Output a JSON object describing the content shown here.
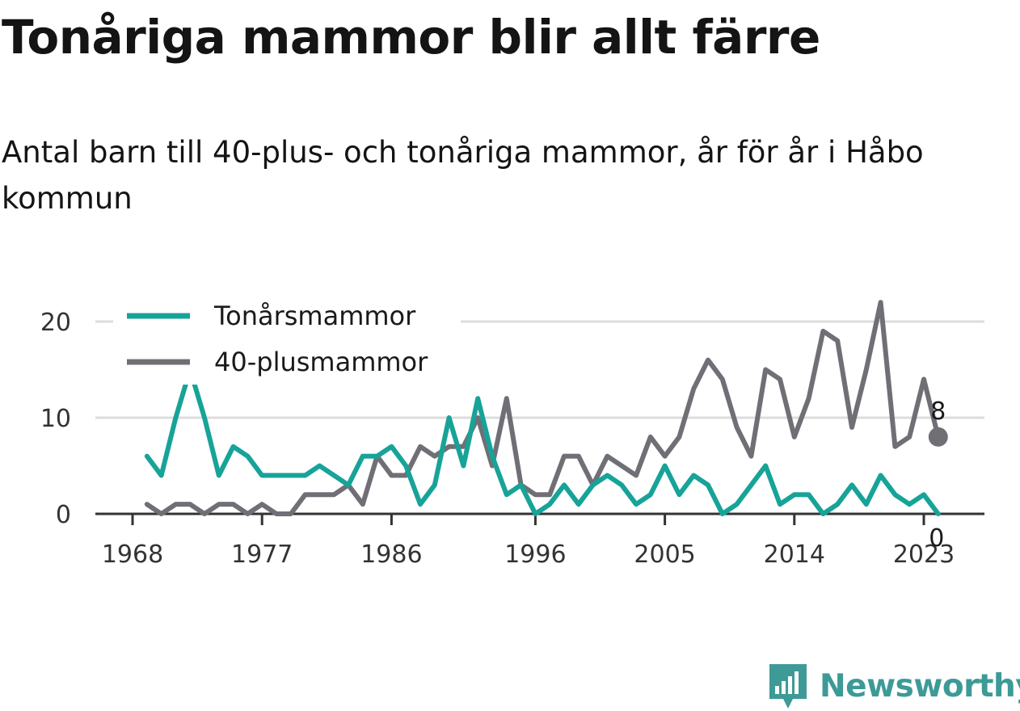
{
  "title": "Tonåriga mammor blir allt färre",
  "subtitle": "Antal barn till 40-plus- och tonåriga mammor, år för år i Håbo kommun",
  "brand": "Newsworthy",
  "colors": {
    "teen": "#17a398",
    "forty": "#706f76",
    "grid": "#dcdcdc",
    "axis": "#333333"
  },
  "chart_data": {
    "type": "line",
    "x": [
      1969,
      1970,
      1971,
      1972,
      1973,
      1974,
      1975,
      1976,
      1977,
      1978,
      1979,
      1980,
      1981,
      1982,
      1983,
      1984,
      1985,
      1986,
      1987,
      1988,
      1989,
      1990,
      1991,
      1992,
      1993,
      1994,
      1995,
      1996,
      1997,
      1998,
      1999,
      2000,
      2001,
      2002,
      2003,
      2004,
      2005,
      2006,
      2007,
      2008,
      2009,
      2010,
      2011,
      2012,
      2013,
      2014,
      2015,
      2016,
      2017,
      2018,
      2019,
      2020,
      2021,
      2022,
      2023,
      2024
    ],
    "series": [
      {
        "name": "Tonårsmammor",
        "color": "#17a398",
        "values": [
          6,
          4,
          10,
          15,
          10,
          4,
          7,
          6,
          4,
          4,
          4,
          4,
          5,
          4,
          3,
          6,
          6,
          7,
          5,
          1,
          3,
          10,
          5,
          12,
          6,
          2,
          3,
          0,
          1,
          3,
          1,
          3,
          4,
          3,
          1,
          2,
          5,
          2,
          4,
          3,
          0,
          1,
          3,
          5,
          1,
          2,
          2,
          0,
          1,
          3,
          1,
          4,
          2,
          1,
          2,
          0
        ]
      },
      {
        "name": "40-plusmammor",
        "color": "#706f76",
        "values": [
          1,
          0,
          1,
          1,
          0,
          1,
          1,
          0,
          1,
          0,
          0,
          2,
          2,
          2,
          3,
          1,
          6,
          4,
          4,
          7,
          6,
          7,
          7,
          10,
          5,
          12,
          3,
          2,
          2,
          6,
          6,
          3,
          6,
          5,
          4,
          8,
          6,
          8,
          13,
          16,
          14,
          9,
          6,
          15,
          14,
          8,
          12,
          19,
          18,
          9,
          15,
          22,
          7,
          8,
          14,
          8
        ]
      }
    ],
    "xticks": [
      "1968",
      "1977",
      "1986",
      "1996",
      "2005",
      "2014",
      "2023"
    ],
    "yticks": [
      "0",
      "10",
      "20"
    ],
    "ylim": [
      0,
      22
    ],
    "end_labels": [
      "8",
      "0"
    ],
    "legend_position": "top-left",
    "grid": true
  }
}
